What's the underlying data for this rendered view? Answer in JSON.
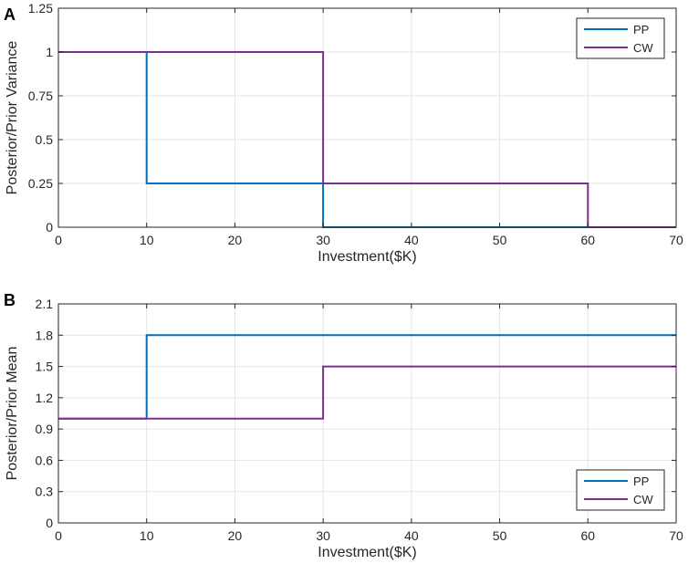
{
  "chart_data": [
    {
      "panel_label": "A",
      "type": "line",
      "step": true,
      "xlabel": "Investment($K)",
      "ylabel": "Posterior/Prior Variance",
      "xlim": [
        0,
        70
      ],
      "ylim": [
        0,
        1.25
      ],
      "xticks": [
        0,
        10,
        20,
        30,
        40,
        50,
        60,
        70
      ],
      "xtick_labels": [
        "0",
        "10",
        "20",
        "30",
        "40",
        "50",
        "60",
        "70"
      ],
      "yticks": [
        0,
        0.25,
        0.5,
        0.75,
        1,
        1.25
      ],
      "ytick_labels": [
        "0",
        "0.25",
        "0.5",
        "0.75",
        "1",
        "1.25"
      ],
      "grid": true,
      "legend_position": "top-right",
      "series": [
        {
          "name": "PP",
          "color": "#0072BD",
          "x": [
            0,
            10,
            10,
            30,
            30,
            70
          ],
          "y": [
            1,
            1,
            0.25,
            0.25,
            0,
            0
          ]
        },
        {
          "name": "CW",
          "color": "#7E2F8E",
          "x": [
            0,
            30,
            30,
            60,
            60,
            70
          ],
          "y": [
            1,
            1,
            0.25,
            0.25,
            0,
            0
          ]
        }
      ]
    },
    {
      "panel_label": "B",
      "type": "line",
      "step": true,
      "xlabel": "Investment($K)",
      "ylabel": "Posterior/Prior Mean",
      "xlim": [
        0,
        70
      ],
      "ylim": [
        0,
        2.1
      ],
      "xticks": [
        0,
        10,
        20,
        30,
        40,
        50,
        60,
        70
      ],
      "xtick_labels": [
        "0",
        "10",
        "20",
        "30",
        "40",
        "50",
        "60",
        "70"
      ],
      "yticks": [
        0,
        0.3,
        0.6,
        0.9,
        1.2,
        1.5,
        1.8,
        2.1
      ],
      "ytick_labels": [
        "0",
        "0.3",
        "0.6",
        "0.9",
        "1.2",
        "1.5",
        "1.8",
        "2.1"
      ],
      "grid": true,
      "legend_position": "bottom-right",
      "series": [
        {
          "name": "PP",
          "color": "#0072BD",
          "x": [
            0,
            10,
            10,
            70
          ],
          "y": [
            1,
            1,
            1.8,
            1.8
          ]
        },
        {
          "name": "CW",
          "color": "#7E2F8E",
          "x": [
            0,
            30,
            30,
            70
          ],
          "y": [
            1,
            1,
            1.5,
            1.5
          ]
        }
      ]
    }
  ]
}
